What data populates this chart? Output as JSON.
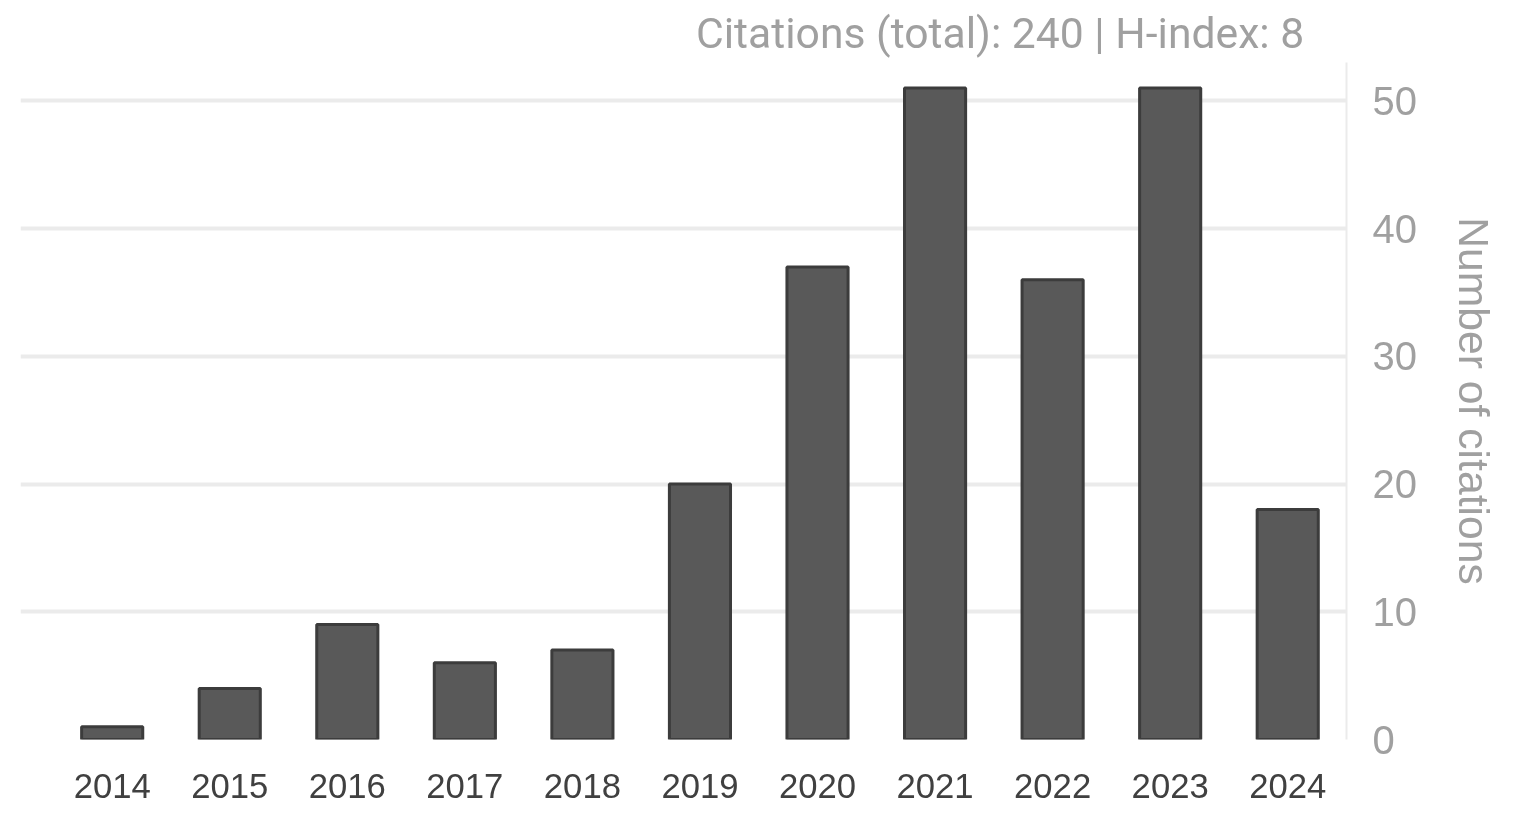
{
  "chart_data": {
    "type": "bar",
    "title": "Citations (total):  240  |  H-index:  8",
    "ylabel": "Number of citations",
    "categories": [
      "2014",
      "2015",
      "2016",
      "2017",
      "2018",
      "2019",
      "2020",
      "2021",
      "2022",
      "2023",
      "2024"
    ],
    "values": [
      1,
      4,
      9,
      6,
      7,
      20,
      37,
      51,
      36,
      51,
      18
    ],
    "color": "#595959",
    "ylim": [
      0,
      53
    ],
    "yticks": [
      0,
      10,
      20,
      30,
      40,
      50
    ],
    "grid": "y"
  }
}
